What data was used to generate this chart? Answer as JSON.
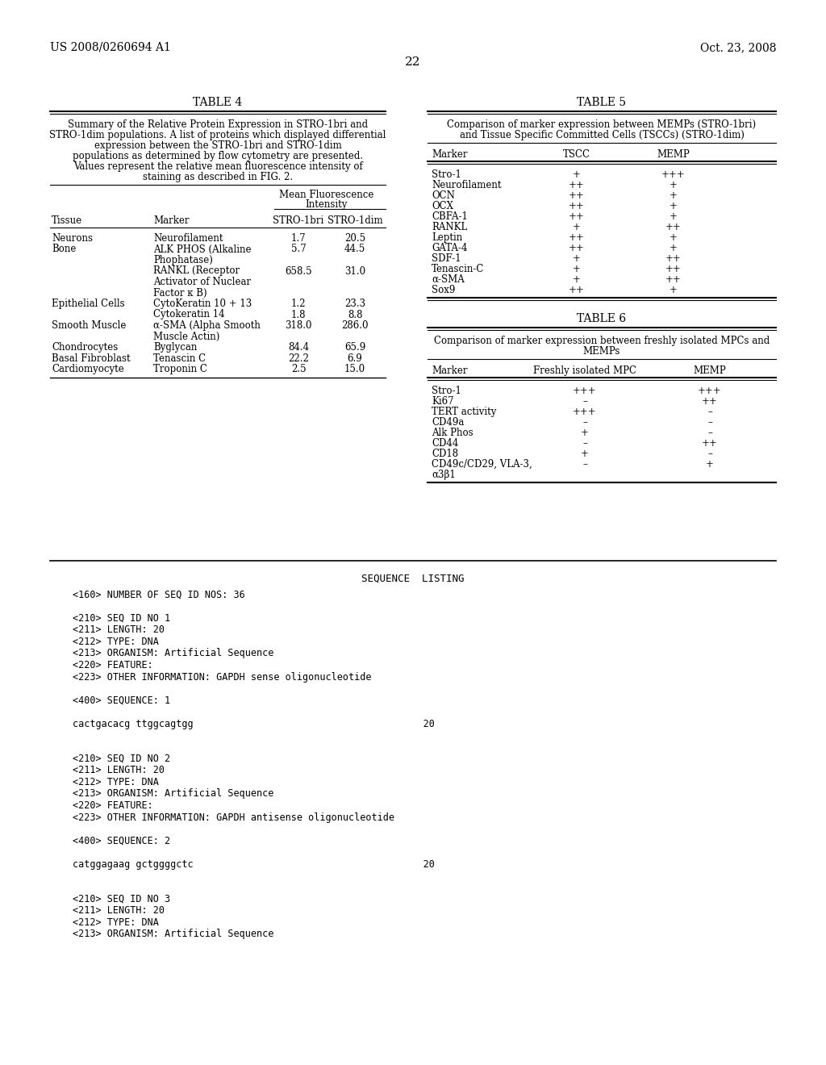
{
  "header_left": "US 2008/0260694 A1",
  "header_right": "Oct. 23, 2008",
  "page_number": "22",
  "bg_color": "#ffffff",
  "text_color": "#000000",
  "table4_title": "TABLE 4",
  "table5_title": "TABLE 5",
  "table6_title": "TABLE 6",
  "table4_caption_lines": [
    "Summary of the Relative Protein Expression in STRO-1bri and",
    "STRO-1dim populations. A list of proteins which displayed differential",
    "expression between the STRO-1bri and STRO-1dim",
    "populations as determined by flow cytometry are presented.",
    "Values represent the relative mean fluorescence intensity of",
    "staining as described in FIG. 2."
  ],
  "table4_rows": [
    [
      "Neurons",
      "Neurofilament",
      "1.7",
      "20.5",
      1
    ],
    [
      "Bone",
      "ALK PHOS (Alkaline\nPhophatase)",
      "5.7",
      "44.5",
      2
    ],
    [
      "",
      "RANKL (Receptor\nActivator of Nuclear\nFactor κ B)",
      "658.5",
      "31.0",
      3
    ],
    [
      "Epithelial Cells",
      "CytoKeratin 10 + 13",
      "1.2",
      "23.3",
      1
    ],
    [
      "",
      "Cytokeratin 14",
      "1.8",
      "8.8",
      1
    ],
    [
      "Smooth Muscle",
      "α-SMA (Alpha Smooth\nMuscle Actin)",
      "318.0",
      "286.0",
      2
    ],
    [
      "Chondrocytes",
      "Byglycan",
      "84.4",
      "65.9",
      1
    ],
    [
      "Basal Fibroblast",
      "Tenascin C",
      "22.2",
      "6.9",
      1
    ],
    [
      "Cardiomyocyte",
      "Troponin C",
      "2.5",
      "15.0",
      1
    ]
  ],
  "table5_caption_lines": [
    "Comparison of marker expression between MEMPs (STRO-1bri)",
    "and Tissue Specific Committed Cells (TSCCs) (STRO-1dim)"
  ],
  "table5_rows": [
    [
      "Stro-1",
      "+",
      "+++"
    ],
    [
      "Neurofilament",
      "++",
      "+"
    ],
    [
      "OCN",
      "++",
      "+"
    ],
    [
      "OCX",
      "++",
      "+"
    ],
    [
      "CBFA-1",
      "++",
      "+"
    ],
    [
      "RANKL",
      "+",
      "++"
    ],
    [
      "Leptin",
      "++",
      "+"
    ],
    [
      "GATA-4",
      "++",
      "+"
    ],
    [
      "SDF-1",
      "+",
      "++"
    ],
    [
      "Tenascin-C",
      "+",
      "++"
    ],
    [
      "α-SMA",
      "+",
      "++"
    ],
    [
      "Sox9",
      "++",
      "+"
    ]
  ],
  "table6_caption_lines": [
    "Comparison of marker expression between freshly isolated MPCs and",
    "MEMPs"
  ],
  "table6_rows": [
    [
      "Stro-1",
      "+++",
      "+++",
      1
    ],
    [
      "Ki67",
      "–",
      "++",
      1
    ],
    [
      "TERT activity",
      "+++",
      "–",
      1
    ],
    [
      "CD49a",
      "–",
      "–",
      1
    ],
    [
      "Alk Phos",
      "+",
      "–",
      1
    ],
    [
      "CD44",
      "–",
      "++",
      1
    ],
    [
      "CD18",
      "+",
      "–",
      1
    ],
    [
      "CD49c/CD29, VLA-3,\nα3β1",
      "–",
      "+",
      2
    ]
  ],
  "seq_listing_title": "SEQUENCE  LISTING",
  "seq_lines": [
    "<160> NUMBER OF SEQ ID NOS: 36",
    "",
    "<210> SEQ ID NO 1",
    "<211> LENGTH: 20",
    "<212> TYPE: DNA",
    "<213> ORGANISM: Artificial Sequence",
    "<220> FEATURE:",
    "<223> OTHER INFORMATION: GAPDH sense oligonucleotide",
    "",
    "<400> SEQUENCE: 1",
    "",
    "cactgacacg ttggcagtgg                                        20",
    "",
    "",
    "<210> SEQ ID NO 2",
    "<211> LENGTH: 20",
    "<212> TYPE: DNA",
    "<213> ORGANISM: Artificial Sequence",
    "<220> FEATURE:",
    "<223> OTHER INFORMATION: GAPDH antisense oligonucleotide",
    "",
    "<400> SEQUENCE: 2",
    "",
    "catggagaag gctggggctc                                        20",
    "",
    "",
    "<210> SEQ ID NO 3",
    "<211> LENGTH: 20",
    "<212> TYPE: DNA",
    "<213> ORGANISM: Artificial Sequence"
  ]
}
